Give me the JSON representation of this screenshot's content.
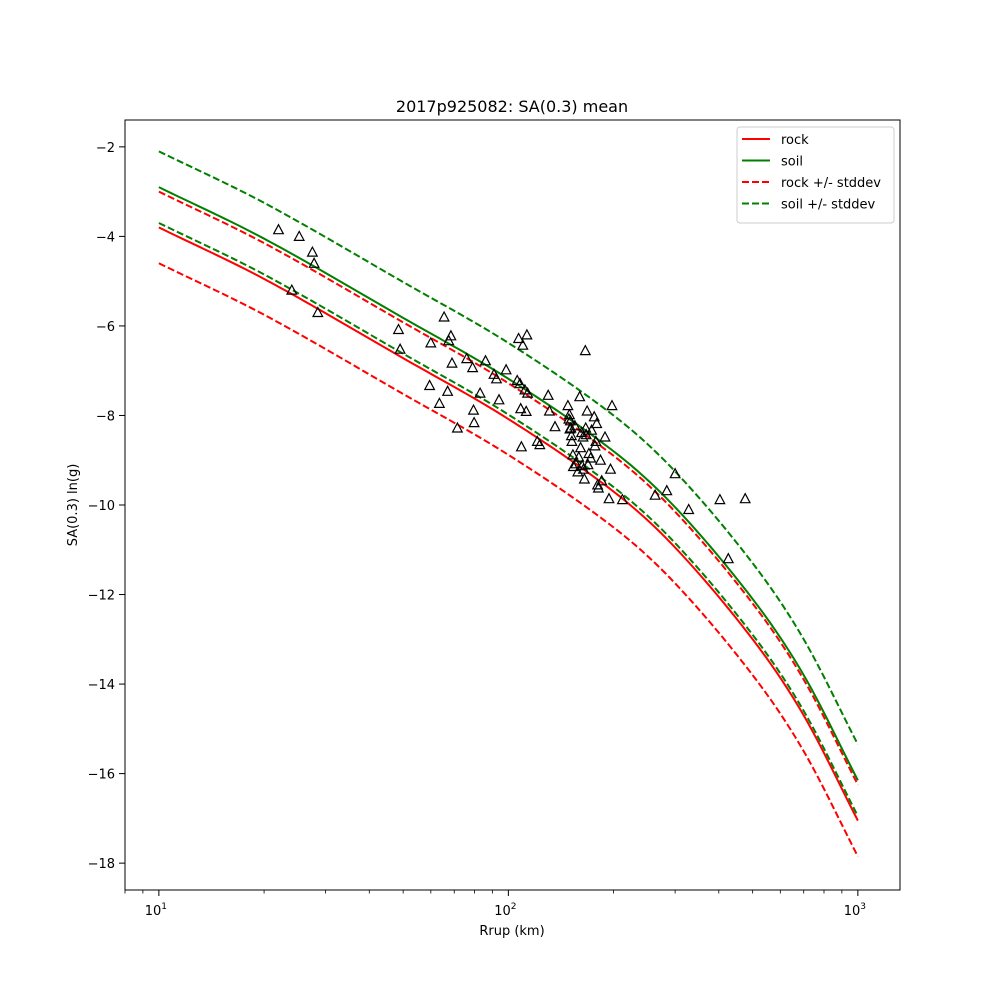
{
  "chart_data": {
    "type": "line",
    "title": "2017p925082: SA(0.3) mean",
    "xlabel": "Rrup (km)",
    "ylabel": "SA(0.3) ln(g)",
    "xscale": "log",
    "xlim": [
      8.0,
      1320
    ],
    "ylim": [
      -18.6,
      -1.4
    ],
    "xticks": [
      {
        "value": 10,
        "base": "10",
        "exp": "1"
      },
      {
        "value": 100,
        "base": "10",
        "exp": "2"
      },
      {
        "value": 1000,
        "base": "10",
        "exp": "3"
      }
    ],
    "yticks": [
      -2,
      -4,
      -6,
      -8,
      -10,
      -12,
      -14,
      -16,
      -18
    ],
    "ytick_labels": [
      "−2",
      "−4",
      "−6",
      "−8",
      "−10",
      "−12",
      "−14",
      "−16",
      "−18"
    ],
    "grid": false,
    "legend_position": "top-right",
    "legend": [
      {
        "label": "rock",
        "color": "#ff0000",
        "dashed": false
      },
      {
        "label": "soil",
        "color": "#008000",
        "dashed": false
      },
      {
        "label": "rock +/- stddev",
        "color": "#ff0000",
        "dashed": true
      },
      {
        "label": "soil +/- stddev",
        "color": "#008000",
        "dashed": true
      }
    ],
    "series": [
      {
        "name": "rock",
        "color": "#ff0000",
        "dashed": false,
        "x": [
          10,
          20,
          50,
          100,
          200,
          300,
          500,
          700,
          1000
        ],
        "y": [
          -3.8,
          -4.95,
          -6.72,
          -8.08,
          -9.7,
          -10.95,
          -13.0,
          -14.7,
          -17.05
        ]
      },
      {
        "name": "soil",
        "color": "#008000",
        "dashed": false,
        "x": [
          10,
          20,
          50,
          100,
          200,
          300,
          500,
          700,
          1000
        ],
        "y": [
          -2.9,
          -4.05,
          -5.82,
          -7.18,
          -8.8,
          -10.05,
          -12.1,
          -13.8,
          -16.15
        ]
      },
      {
        "name": "rock +/- stddev",
        "color": "#ff0000",
        "dashed": true,
        "x": [
          10,
          20,
          50,
          100,
          200,
          300,
          500,
          700,
          1000
        ],
        "y": [
          -3.0,
          -4.15,
          -5.92,
          -7.28,
          -8.9,
          -10.15,
          -12.2,
          -13.9,
          -16.25
        ]
      },
      {
        "name": "",
        "color": "#ff0000",
        "dashed": true,
        "x": [
          10,
          20,
          50,
          100,
          200,
          300,
          500,
          700,
          1000
        ],
        "y": [
          -4.6,
          -5.75,
          -7.52,
          -8.88,
          -10.5,
          -11.75,
          -13.8,
          -15.5,
          -17.85
        ]
      },
      {
        "name": "soil +/- stddev",
        "color": "#008000",
        "dashed": true,
        "x": [
          10,
          20,
          50,
          100,
          200,
          300,
          500,
          700,
          1000
        ],
        "y": [
          -2.1,
          -3.25,
          -5.02,
          -6.38,
          -8.0,
          -9.25,
          -11.3,
          -13.0,
          -15.35
        ]
      },
      {
        "name": "",
        "color": "#008000",
        "dashed": true,
        "x": [
          10,
          20,
          50,
          100,
          200,
          300,
          500,
          700,
          1000
        ],
        "y": [
          -3.7,
          -4.85,
          -6.62,
          -7.98,
          -9.6,
          -10.85,
          -12.9,
          -14.6,
          -16.95
        ]
      }
    ],
    "observations": {
      "marker": "triangle",
      "points": [
        [
          22,
          -3.85
        ],
        [
          25.2,
          -4.0
        ],
        [
          27.5,
          -4.35
        ],
        [
          27.8,
          -4.6
        ],
        [
          24,
          -5.2
        ],
        [
          28.5,
          -5.7
        ],
        [
          48.5,
          -6.08
        ],
        [
          49.0,
          -6.52
        ],
        [
          59.5,
          -7.33
        ],
        [
          60.0,
          -6.38
        ],
        [
          63.5,
          -7.73
        ],
        [
          65.5,
          -5.8
        ],
        [
          67.0,
          -7.46
        ],
        [
          67.5,
          -6.33
        ],
        [
          68.5,
          -6.22
        ],
        [
          69.0,
          -6.83
        ],
        [
          71.5,
          -8.28
        ],
        [
          76.0,
          -6.73
        ],
        [
          79.0,
          -6.93
        ],
        [
          79.5,
          -7.88
        ],
        [
          79.8,
          -8.16
        ],
        [
          83.0,
          -7.5
        ],
        [
          86.0,
          -6.78
        ],
        [
          91.0,
          -7.08
        ],
        [
          92.5,
          -7.18
        ],
        [
          94.0,
          -7.65
        ],
        [
          98.5,
          -6.98
        ],
        [
          106.0,
          -7.22
        ],
        [
          107.0,
          -6.28
        ],
        [
          108.0,
          -7.29
        ],
        [
          108.5,
          -7.85
        ],
        [
          109.0,
          -8.7
        ],
        [
          110.0,
          -6.43
        ],
        [
          111.5,
          -7.43
        ],
        [
          112.5,
          -7.91
        ],
        [
          113.0,
          -6.2
        ],
        [
          113.5,
          -7.5
        ],
        [
          121.0,
          -8.58
        ],
        [
          123.0,
          -8.65
        ],
        [
          130.0,
          -7.55
        ],
        [
          131.0,
          -7.9
        ],
        [
          136.0,
          -8.25
        ],
        [
          148.0,
          -7.78
        ],
        [
          149.0,
          -8.08
        ],
        [
          149.5,
          -7.98
        ],
        [
          150.0,
          -8.3
        ],
        [
          150.5,
          -8.12
        ],
        [
          151.0,
          -8.28
        ],
        [
          151.5,
          -8.45
        ],
        [
          152.0,
          -8.58
        ],
        [
          153.0,
          -8.88
        ],
        [
          153.5,
          -9.14
        ],
        [
          155.0,
          -8.23
        ],
        [
          156.0,
          -9.08
        ],
        [
          158.0,
          -9.26
        ],
        [
          159.0,
          -8.93
        ],
        [
          160.0,
          -7.58
        ],
        [
          161.0,
          -8.72
        ],
        [
          162.0,
          -8.38
        ],
        [
          162.5,
          -9.12
        ],
        [
          163.5,
          -8.48
        ],
        [
          164.0,
          -9.2
        ],
        [
          165.0,
          -9.42
        ],
        [
          166.0,
          -6.55
        ],
        [
          166.5,
          -8.28
        ],
        [
          167.0,
          -8.43
        ],
        [
          168.0,
          -7.9
        ],
        [
          169.0,
          -9.1
        ],
        [
          170.0,
          -8.85
        ],
        [
          172.0,
          -8.95
        ],
        [
          173.0,
          -8.33
        ],
        [
          176.0,
          -8.03
        ],
        [
          177.0,
          -8.68
        ],
        [
          178.0,
          -8.58
        ],
        [
          179.0,
          -8.18
        ],
        [
          180.0,
          -9.55
        ],
        [
          181.0,
          -9.62
        ],
        [
          183.5,
          -9.0
        ],
        [
          185.0,
          -9.46
        ],
        [
          189.0,
          -8.48
        ],
        [
          194.0,
          -9.86
        ],
        [
          196.0,
          -9.2
        ],
        [
          198.0,
          -7.78
        ],
        [
          212.0,
          -9.88
        ],
        [
          263.0,
          -9.78
        ],
        [
          284.0,
          -9.68
        ],
        [
          300.0,
          -9.3
        ],
        [
          328.0,
          -10.1
        ],
        [
          403.0,
          -9.88
        ],
        [
          426.0,
          -11.2
        ],
        [
          476.0,
          -9.86
        ]
      ]
    }
  }
}
